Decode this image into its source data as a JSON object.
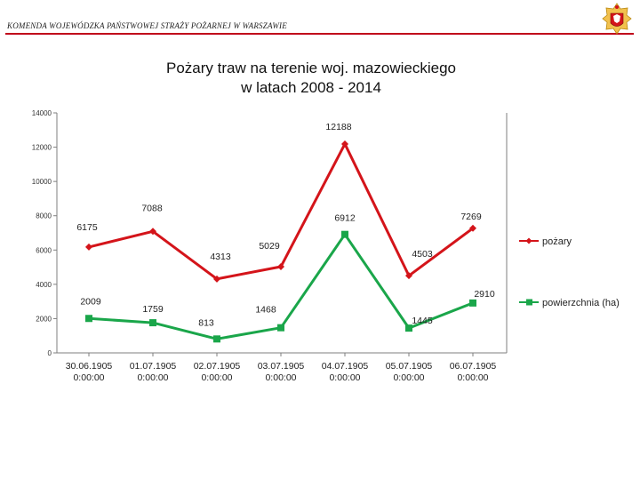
{
  "header": {
    "organization": "KOMENDA WOJEWÓDZKA PAŃSTWOWEJ STRAŻY POŻARNEJ W WARSZAWIE"
  },
  "colors": {
    "header_rule": "#c0001a",
    "series_pozary": "#d4141a",
    "series_powierzchnia": "#1aa64a",
    "axis": "#7f7f7f"
  },
  "chart_data": {
    "type": "line",
    "title_lines": [
      "Pożary traw na terenie woj. mazowieckiego",
      "w latach 2008 - 2014"
    ],
    "categories": [
      [
        "30.06.1905",
        "0:00:00"
      ],
      [
        "01.07.1905",
        "0:00:00"
      ],
      [
        "02.07.1905",
        "0:00:00"
      ],
      [
        "03.07.1905",
        "0:00:00"
      ],
      [
        "04.07.1905",
        "0:00:00"
      ],
      [
        "05.07.1905",
        "0:00:00"
      ],
      [
        "06.07.1905",
        "0:00:00"
      ]
    ],
    "series": [
      {
        "name": "pożary",
        "marker": "diamond",
        "values": [
          6175,
          7088,
          4313,
          5029,
          12188,
          4503,
          7269
        ]
      },
      {
        "name": "powierzchnia (ha)",
        "marker": "square",
        "values": [
          2009,
          1759,
          813,
          1468,
          6912,
          1445,
          2910
        ]
      }
    ],
    "data_labels": [
      [
        "6175",
        "7088",
        "4313",
        "5029",
        "12188",
        "4503",
        "7269"
      ],
      [
        "2009",
        "1759",
        "813",
        "1468",
        "6912",
        "1445",
        "2910"
      ]
    ],
    "ylim": [
      0,
      14000
    ],
    "yticks": [
      0,
      2000,
      4000,
      6000,
      8000,
      10000,
      12000,
      14000
    ],
    "legend_position": "right",
    "grid": false
  }
}
